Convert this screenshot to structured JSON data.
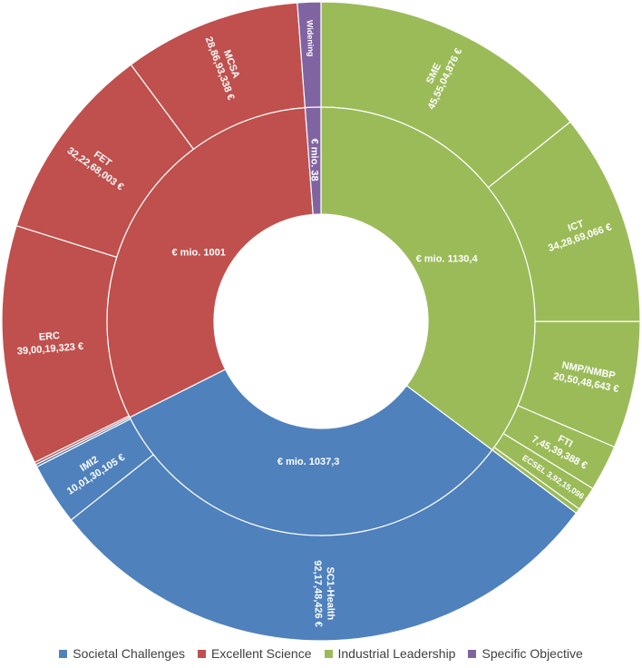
{
  "chart_data": {
    "type": "sunburst",
    "colors": {
      "Societal Challenges": "#4f81bd",
      "Excellent Science": "#c0504d",
      "Industrial Leadership": "#9bbb59",
      "Specific Objective": "#8064a2"
    },
    "legend": [
      "Societal Challenges",
      "Excellent Science",
      "Industrial Leadership",
      "Specific Objective"
    ],
    "legend_position": "bottom",
    "inner_ring": [
      {
        "group": "Industrial Leadership",
        "label": "€ mio. 1130,4",
        "value": 1130.4
      },
      {
        "group": "Societal Challenges",
        "label": "€ mio. 1037,3",
        "value": 1037.3
      },
      {
        "group": "Excellent Science",
        "label": "€ mio. 1001",
        "value": 1001
      },
      {
        "group": "Specific Objective",
        "label": "€ mio. 38",
        "value": 38
      }
    ],
    "outer_ring": [
      {
        "group": "Industrial Leadership",
        "name": "SME",
        "value_label": "45,55,04,876 €",
        "value": 455504876
      },
      {
        "group": "Industrial Leadership",
        "name": "ICT",
        "value_label": "34,28,69,066 €",
        "value": 342869066
      },
      {
        "group": "Industrial Leadership",
        "name": "NMP/NMBP",
        "value_label": "20,50,48,643 €",
        "value": 205048643
      },
      {
        "group": "Industrial Leadership",
        "name": "FTI",
        "value_label": "7,45,39,388 €",
        "value": 74539388
      },
      {
        "group": "Industrial Leadership",
        "name": "ECSEL",
        "value_label": "3,92,15,096 €",
        "value": 39215096
      },
      {
        "group": "Industrial Leadership",
        "name": "",
        "value_label": "",
        "value": 8000000
      },
      {
        "group": "Societal Challenges",
        "name": "SC1-Health",
        "value_label": "92,17,48,426 €",
        "value": 921748426
      },
      {
        "group": "Societal Challenges",
        "name": "IMI2",
        "value_label": "10,01,30,105 €",
        "value": 100130105
      },
      {
        "group": "Societal Challenges",
        "name": "",
        "value_label": "",
        "value": 4000000
      },
      {
        "group": "Excellent Science",
        "name": "",
        "value_label": "",
        "value": 4000000
      },
      {
        "group": "Excellent Science",
        "name": "ERC",
        "value_label": "39,00,19,323 €",
        "value": 390019323
      },
      {
        "group": "Excellent Science",
        "name": "FET",
        "value_label": "32,22,68,003 €",
        "value": 322268003
      },
      {
        "group": "Excellent Science",
        "name": "MCSA",
        "value_label": "28,86,93,338 €",
        "value": 288693338
      },
      {
        "group": "Specific Objective",
        "name": "Widening",
        "value_label": "",
        "value": 38000000
      }
    ]
  }
}
